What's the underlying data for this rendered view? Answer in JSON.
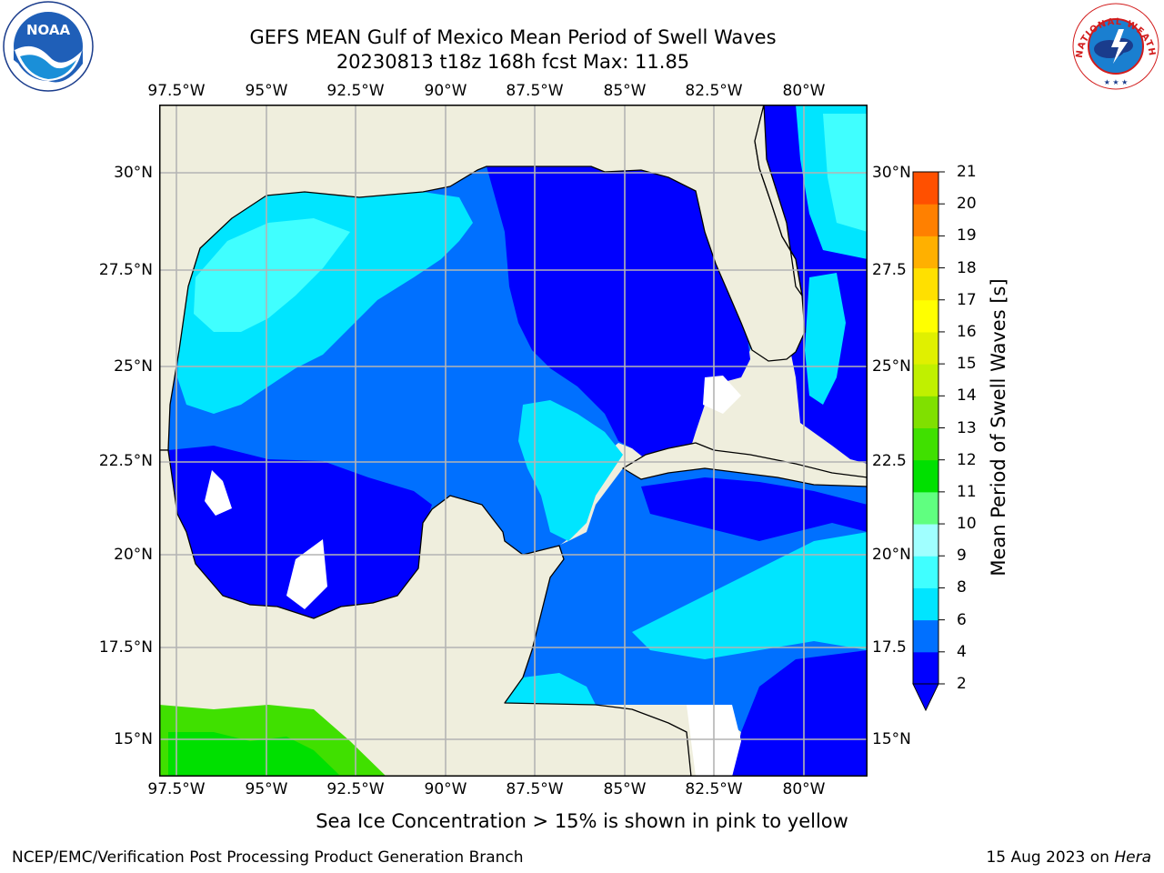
{
  "title": {
    "line1": "GEFS MEAN Gulf of Mexico Mean Period of Swell Waves",
    "line2": "20230813 t18z 168h fcst   Max: 11.85"
  },
  "map": {
    "lon_ticks": [
      "97.5°W",
      "95°W",
      "92.5°W",
      "90°W",
      "87.5°W",
      "85°W",
      "82.5°W",
      "80°W"
    ],
    "lat_ticks_left": [
      "30°N",
      "27.5°N",
      "25°N",
      "22.5°N",
      "20°N",
      "17.5°N",
      "15°N"
    ],
    "lat_ticks_right": [
      "30°N",
      "27.5",
      "25°N",
      "22.5",
      "20°N",
      "17.5",
      "15°N"
    ],
    "extent": {
      "lon_min": -98,
      "lon_max": -78.2,
      "lat_min": 14,
      "lat_max": 31.8
    },
    "colors": {
      "land": "#efeedd",
      "grid": "#b4b4b4",
      "missing": "#ffffff"
    }
  },
  "colorbar": {
    "label": "Mean Period of Swell Waves [s]",
    "tick_labels": [
      "2",
      "4",
      "6",
      "8",
      "9",
      "10",
      "11",
      "12",
      "13",
      "14",
      "15",
      "16",
      "17",
      "18",
      "19",
      "20",
      "21"
    ],
    "colors": [
      "#0000ff",
      "#0070ff",
      "#00e5ff",
      "#40ffff",
      "#a0ffff",
      "#60ff80",
      "#00e000",
      "#40e000",
      "#80e000",
      "#c0f000",
      "#e0f000",
      "#ffff00",
      "#ffe000",
      "#ffb000",
      "#ff8000",
      "#ff5000",
      "#ff2000",
      "#ff0000"
    ]
  },
  "footer": {
    "note": "Sea Ice Concentration > 15% is shown in pink to yellow",
    "credit": "NCEP/EMC/Verification Post Processing Product Generation Branch",
    "date_text": "15 Aug 2023 on",
    "date_machine": "Hera"
  },
  "logos": {
    "noaa_text": "NOAA",
    "nws_text": "NATIONAL WEATHER SERVICE"
  }
}
